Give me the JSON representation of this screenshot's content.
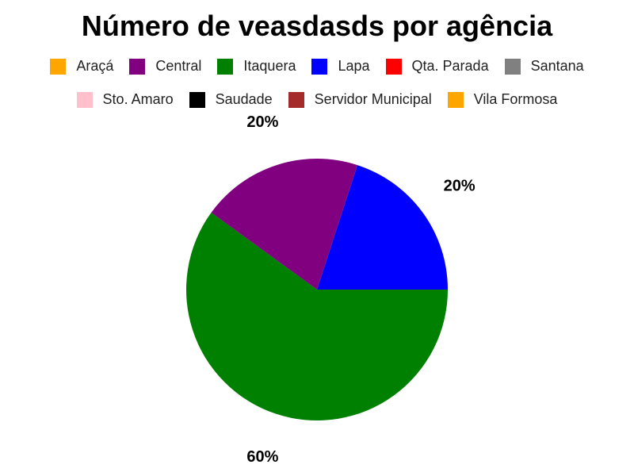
{
  "chart_data": {
    "type": "pie",
    "title": "Número de veasdasds por agência",
    "legend": [
      {
        "label": "Araçá",
        "color": "#FFA500"
      },
      {
        "label": "Central",
        "color": "#800080"
      },
      {
        "label": "Itaquera",
        "color": "#008000"
      },
      {
        "label": "Lapa",
        "color": "#0000FF"
      },
      {
        "label": "Qta. Parada",
        "color": "#FF0000"
      },
      {
        "label": "Santana",
        "color": "#808080"
      },
      {
        "label": "Sto. Amaro",
        "color": "#FFC0CB"
      },
      {
        "label": "Saudade",
        "color": "#000000"
      },
      {
        "label": "Servidor Municipal",
        "color": "#A52A2A"
      },
      {
        "label": "Vila Formosa",
        "color": "#FFA500"
      }
    ],
    "legend_placement": "top",
    "slices": [
      {
        "label": "Lapa",
        "percent": 20,
        "color": "#0000FF",
        "label_text": "20%"
      },
      {
        "label": "Itaquera",
        "percent": 60,
        "color": "#008000",
        "label_text": "60%"
      },
      {
        "label": "Central",
        "percent": 20,
        "color": "#800080",
        "label_text": "20%"
      }
    ]
  }
}
